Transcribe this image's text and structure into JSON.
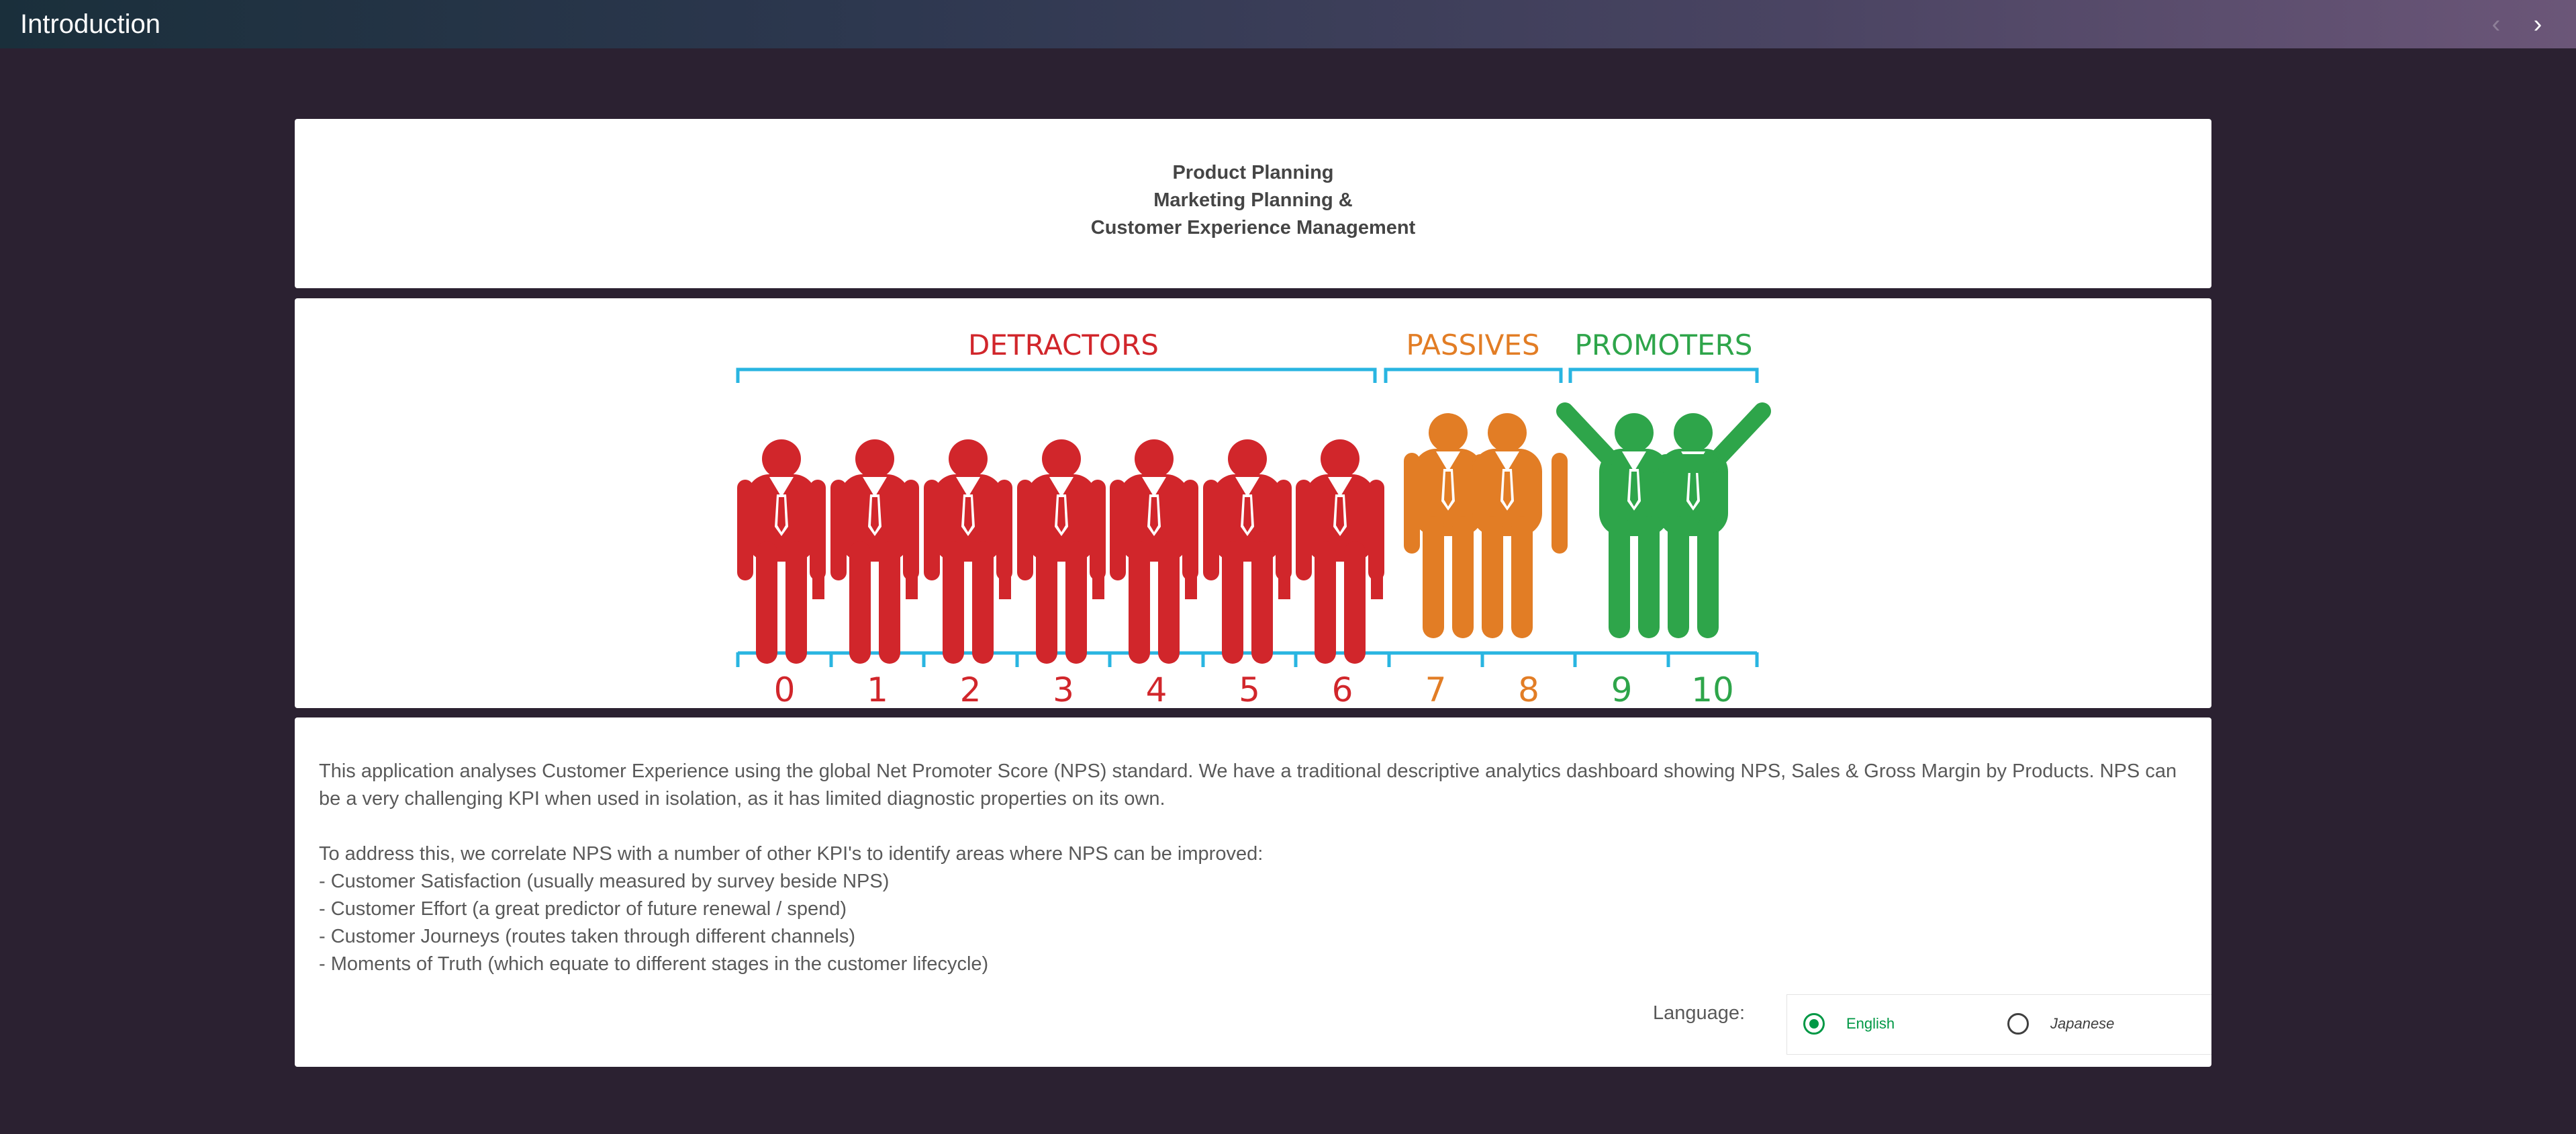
{
  "topbar": {
    "title": "Introduction",
    "prev_icon": "chevron-left-icon",
    "next_icon": "chevron-right-icon"
  },
  "title_panel": {
    "lines": [
      "Product Planning",
      "Marketing Planning &",
      "Customer Experience Management"
    ]
  },
  "nps_graphic": {
    "groups": [
      {
        "label": "DETRACTORS",
        "color": "#d1262b",
        "scores": [
          0,
          1,
          2,
          3,
          4,
          5,
          6
        ]
      },
      {
        "label": "PASSIVES",
        "color": "#e27d25",
        "scores": [
          7,
          8
        ]
      },
      {
        "label": "PROMOTERS",
        "color": "#2ea54a",
        "scores": [
          9,
          10
        ]
      }
    ],
    "scale_labels": [
      "0",
      "1",
      "2",
      "3",
      "4",
      "5",
      "6",
      "7",
      "8",
      "9",
      "10"
    ],
    "bracket_color": "#29b5e1"
  },
  "description": {
    "paragraph1": "This application analyses Customer Experience using the global Net Promoter Score (NPS) standard. We have a traditional descriptive analytics dashboard showing NPS, Sales & Gross Margin by Products. NPS can be a very challenging KPI when used in isolation, as it has limited diagnostic properties on its own.",
    "paragraph2_intro": "To address this, we correlate NPS with a number of other KPI's to identify areas where NPS can be improved:",
    "bullets": [
      "- Customer Satisfaction (usually measured by survey beside NPS)",
      "- Customer Effort (a great predictor of future renewal / spend)",
      "- Customer Journeys (routes taken through different channels)",
      "- Moments of Truth (which equate to different stages in the customer lifecycle)"
    ]
  },
  "language": {
    "label": "Language:",
    "options": [
      {
        "label": "English",
        "selected": true
      },
      {
        "label": "Japanese",
        "selected": false
      }
    ],
    "selected_color": "#009845"
  }
}
